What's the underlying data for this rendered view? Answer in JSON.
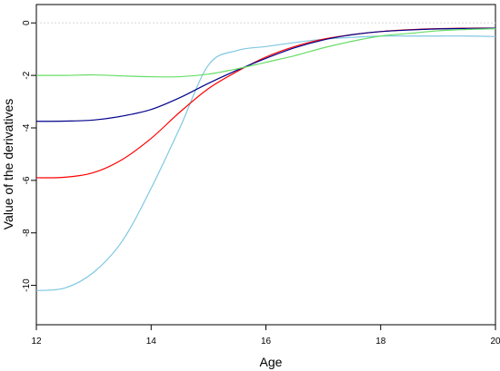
{
  "chart_data": {
    "type": "line",
    "title": "",
    "xlabel": "Age",
    "ylabel": "Value of the derivatives",
    "xlim": [
      12,
      20
    ],
    "ylim": [
      -11.5,
      0.7
    ],
    "x_ticks": [
      12,
      14,
      16,
      18,
      20
    ],
    "y_ticks": [
      -10,
      -8,
      -6,
      -4,
      -2,
      0
    ],
    "reference_line": {
      "y": 0,
      "color": "#d8d8d8",
      "style": "dotted"
    },
    "x": [
      12,
      12.5,
      13,
      13.5,
      14,
      14.5,
      15,
      15.5,
      16,
      16.5,
      17,
      17.5,
      18,
      18.5,
      19,
      19.5,
      20
    ],
    "series": [
      {
        "color": "#7ec8e3",
        "values": [
          -10.2,
          -10.1,
          -9.5,
          -8.3,
          -6.3,
          -4.0,
          -1.6,
          -1.05,
          -0.9,
          -0.75,
          -0.62,
          -0.55,
          -0.5,
          -0.5,
          -0.5,
          -0.5,
          -0.52
        ]
      },
      {
        "color": "#ff0000",
        "values": [
          -5.9,
          -5.88,
          -5.7,
          -5.2,
          -4.4,
          -3.4,
          -2.5,
          -1.85,
          -1.3,
          -0.9,
          -0.62,
          -0.45,
          -0.33,
          -0.26,
          -0.22,
          -0.2,
          -0.2
        ]
      },
      {
        "color": "#00008b",
        "values": [
          -3.75,
          -3.74,
          -3.7,
          -3.55,
          -3.3,
          -2.85,
          -2.3,
          -1.8,
          -1.35,
          -0.95,
          -0.65,
          -0.45,
          -0.33,
          -0.27,
          -0.23,
          -0.21,
          -0.2
        ]
      },
      {
        "color": "#66dd66",
        "values": [
          -2.0,
          -2.0,
          -1.98,
          -2.02,
          -2.05,
          -2.05,
          -1.95,
          -1.75,
          -1.5,
          -1.25,
          -0.95,
          -0.7,
          -0.5,
          -0.4,
          -0.3,
          -0.25,
          -0.22
        ]
      }
    ]
  }
}
